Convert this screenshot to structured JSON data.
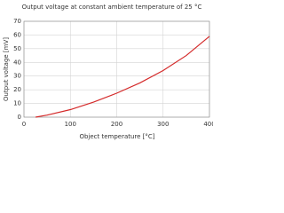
{
  "chart_data": {
    "type": "line",
    "title": "Output voltage at constant ambient temperature of 25 °C",
    "x_label": "Object temperature [°C]",
    "y_label": "Output voltage [mV]",
    "series": [
      {
        "name": "Output voltage",
        "color": "#d42a2a",
        "x": [
          25,
          50,
          100,
          150,
          200,
          250,
          300,
          350,
          400
        ],
        "values": [
          0,
          1.5,
          5.5,
          11,
          17.5,
          25,
          34,
          45,
          59
        ]
      }
    ],
    "xlim": [
      0,
      400
    ],
    "xticks": [
      0,
      100,
      200,
      300,
      400
    ],
    "ylim": [
      0,
      70
    ],
    "yticks": [
      0,
      10,
      20,
      30,
      40,
      50,
      60,
      70
    ],
    "grid": true
  }
}
